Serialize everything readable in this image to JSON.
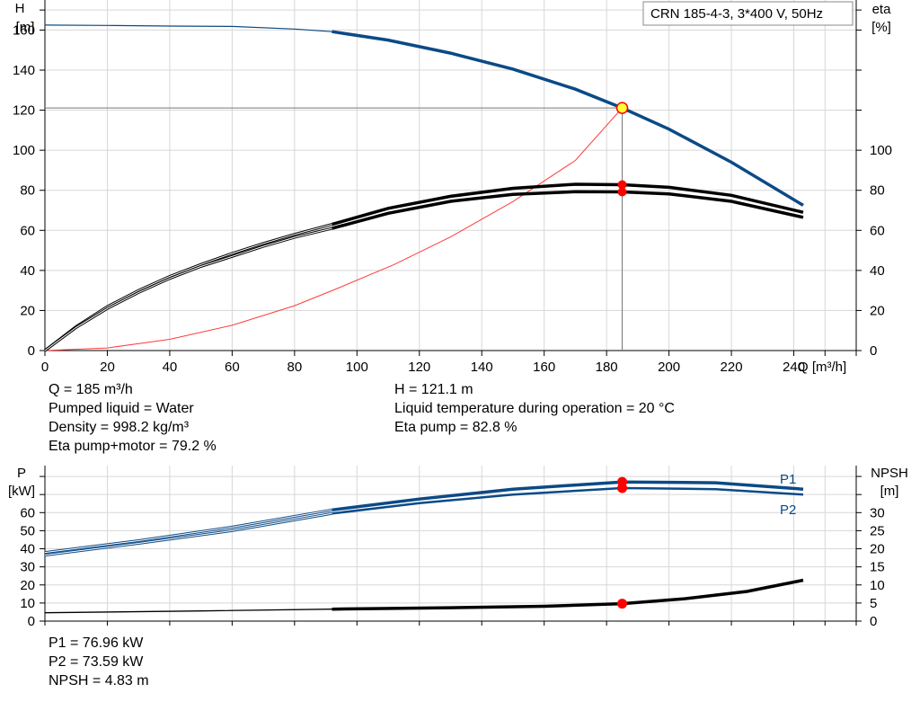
{
  "model_label": "CRN 185-4-3, 3*400 V, 50Hz",
  "colors": {
    "head_curve": "#0b4a86",
    "power_curve": "#0b4a86",
    "eta_curve": "#000000",
    "npsh_curve": "#000000",
    "system_curve": "#ff3b3b",
    "grid": "#d7d7d7",
    "duty_point": "#ff0000",
    "duty_marker_fill": "#ffff33"
  },
  "duty_info": {
    "left": [
      "Q = 185 m³/h",
      "Pumped liquid = Water",
      "Density = 998.2 kg/m³",
      "Eta pump+motor = 79.2 %"
    ],
    "right": [
      "H = 121.1 m",
      "Liquid temperature during operation = 20 °C",
      "Eta pump = 82.8 %"
    ]
  },
  "power_info": [
    "P1 = 76.96 kW",
    "P2 = 73.59 kW",
    "NPSH = 4.83 m"
  ],
  "chart_data": [
    {
      "type": "line",
      "name": "head-efficiency",
      "xlabel": "Q [m³/h]",
      "ylabel_left": [
        "H",
        "[m]"
      ],
      "ylabel_right": [
        "eta",
        "[%]"
      ],
      "xlim": [
        0,
        260
      ],
      "ylim_left": [
        0,
        175
      ],
      "ylim_right": [
        0,
        175
      ],
      "x_ticks": [
        0,
        20,
        40,
        60,
        80,
        100,
        120,
        140,
        160,
        180,
        200,
        220,
        240
      ],
      "y_ticks_left": [
        0,
        20,
        40,
        60,
        80,
        100,
        120,
        140,
        160
      ],
      "y_ticks_right": [
        0,
        20,
        40,
        60,
        80,
        100
      ],
      "grid": true,
      "series": [
        {
          "key": "H",
          "x": [
            0,
            20,
            40,
            60,
            80,
            92,
            110,
            130,
            150,
            170,
            185,
            200,
            220,
            243
          ],
          "y": [
            162.5,
            162.3,
            162,
            161.8,
            160.5,
            159.2,
            155,
            148.5,
            140.5,
            130.5,
            121.1,
            110.5,
            94,
            72.5
          ]
        },
        {
          "key": "eta_pump",
          "x": [
            0,
            10,
            20,
            30,
            40,
            50,
            60,
            70,
            80,
            92,
            110,
            130,
            150,
            170,
            185,
            200,
            220,
            243
          ],
          "y": [
            0,
            12,
            22,
            30,
            37,
            43,
            48.5,
            53.5,
            58,
            63,
            71,
            77,
            81,
            83,
            82.8,
            81.5,
            77.5,
            69
          ]
        },
        {
          "key": "eta_total",
          "x": [
            0,
            10,
            20,
            30,
            40,
            50,
            60,
            70,
            80,
            92,
            110,
            130,
            150,
            170,
            185,
            200,
            220,
            243
          ],
          "y": [
            0,
            11.5,
            21,
            29,
            36,
            42,
            47,
            52,
            56.5,
            61,
            68.5,
            74.5,
            78,
            79.3,
            79.2,
            78.2,
            74.5,
            66.5
          ]
        },
        {
          "key": "system",
          "x": [
            0,
            20,
            40,
            60,
            80,
            92,
            112,
            130,
            150,
            170,
            185
          ],
          "y": [
            0,
            1.3,
            5.6,
            12.6,
            22.4,
            29.9,
            43,
            56.7,
            74.4,
            94.9,
            121.1
          ]
        }
      ],
      "duty_point": {
        "x": 185,
        "H": 121.1,
        "eta_pump": 82.8,
        "eta_total": 79.2
      }
    },
    {
      "type": "line",
      "name": "power-npsh",
      "ylabel_left": [
        "P",
        "[kW]"
      ],
      "ylabel_right": [
        "NPSH",
        "[m]"
      ],
      "ylim_left": [
        0,
        86
      ],
      "ylim_right": [
        0,
        43
      ],
      "y_ticks_left": [
        0,
        10,
        20,
        30,
        40,
        50,
        60
      ],
      "y_ticks_right": [
        0,
        5,
        10,
        15,
        20,
        25,
        30
      ],
      "grid": true,
      "series": [
        {
          "key": "P1",
          "name": "P1",
          "x": [
            0,
            30,
            60,
            92,
            120,
            150,
            185,
            215,
            243
          ],
          "y": [
            38,
            44.5,
            52,
            61.5,
            67.5,
            73,
            76.96,
            76.5,
            73
          ]
        },
        {
          "key": "P2",
          "name": "P2",
          "x": [
            0,
            30,
            60,
            92,
            120,
            150,
            185,
            215,
            243
          ],
          "y": [
            36.5,
            43,
            50,
            59.5,
            65.2,
            70,
            73.59,
            73,
            70
          ]
        },
        {
          "key": "NPSH",
          "x": [
            0,
            50,
            92,
            130,
            160,
            185,
            205,
            225,
            243
          ],
          "y": [
            2.3,
            2.8,
            3.3,
            3.7,
            4.1,
            4.83,
            6.2,
            8.2,
            11.3
          ]
        }
      ],
      "duty_point": {
        "x": 185,
        "P1": 76.96,
        "P2": 73.59,
        "NPSH": 4.83
      }
    }
  ]
}
